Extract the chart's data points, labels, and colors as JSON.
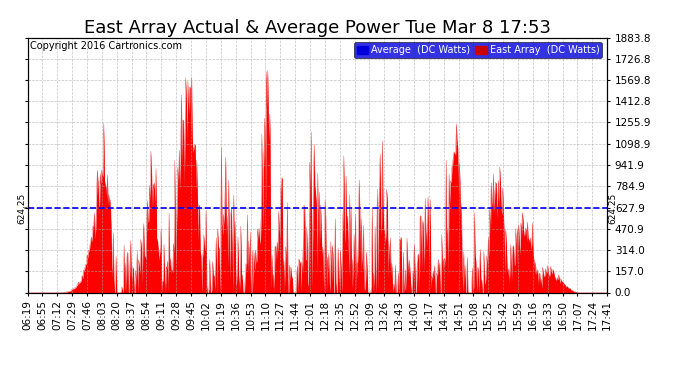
{
  "title": "East Array Actual & Average Power Tue Mar 8 17:53",
  "copyright": "Copyright 2016 Cartronics.com",
  "legend_avg_label": "Average  (DC Watts)",
  "legend_east_label": "East Array  (DC Watts)",
  "legend_avg_color": "#0000dd",
  "legend_east_color": "#cc0000",
  "fill_color": "#ff0000",
  "line_color": "#dd0000",
  "background_color": "#ffffff",
  "grid_color": "#aaaaaa",
  "yticks": [
    0.0,
    157.0,
    314.0,
    470.9,
    627.9,
    784.9,
    941.9,
    1098.9,
    1255.9,
    1412.8,
    1569.8,
    1726.8,
    1883.8
  ],
  "ylim": [
    0.0,
    1883.8
  ],
  "hline_value": 624.25,
  "hline_label": "624.25",
  "hline_color": "#0000ff",
  "title_fontsize": 13,
  "copyright_fontsize": 7,
  "tick_fontsize": 7.5,
  "xlabel_rotation": 90,
  "xtick_labels": [
    "06:19",
    "06:55",
    "07:12",
    "07:29",
    "07:46",
    "08:03",
    "08:20",
    "08:37",
    "08:54",
    "09:11",
    "09:28",
    "09:45",
    "10:02",
    "10:19",
    "10:36",
    "10:53",
    "11:10",
    "11:27",
    "11:44",
    "12:01",
    "12:18",
    "12:35",
    "12:52",
    "13:09",
    "13:26",
    "13:43",
    "14:00",
    "14:17",
    "14:34",
    "14:51",
    "15:08",
    "15:25",
    "15:42",
    "15:59",
    "16:16",
    "16:33",
    "16:50",
    "17:07",
    "17:24",
    "17:41"
  ]
}
